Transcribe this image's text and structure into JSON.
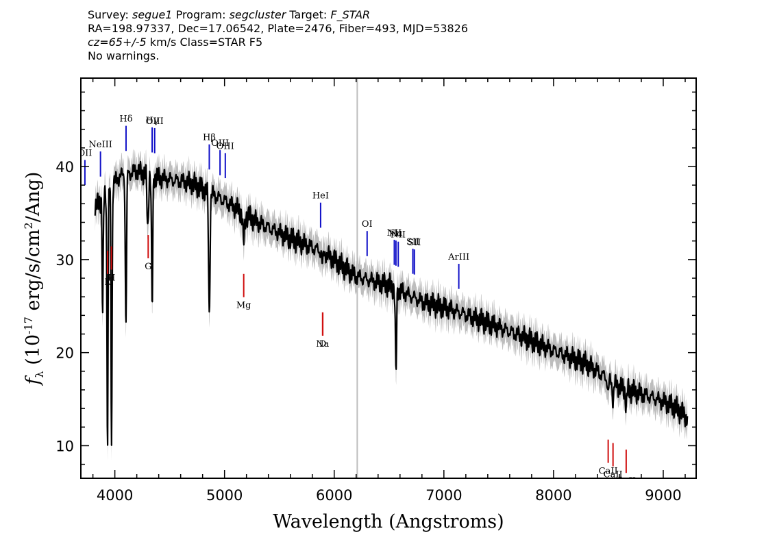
{
  "header": {
    "survey_key": "Survey:",
    "survey": "segue1",
    "program_key": "Program:",
    "program": "segcluster",
    "target_key": "Target:",
    "target": "F_STAR",
    "line2": "RA=198.97337, Dec=17.06542, Plate=2476, Fiber=493, MJD=53826",
    "cz_value": "cz=65+/-5",
    "cz_rest": " km/s Class=STAR F5",
    "line4": "No warnings."
  },
  "chart_data": {
    "type": "line",
    "xlabel": "Wavelength (Angstroms)",
    "ylabel": "f_λ (10^-17 erg/s/cm^2/Ang)",
    "xlim": [
      3690,
      9300
    ],
    "ylim": [
      6.5,
      49.5
    ],
    "x_ticks": [
      4000,
      5000,
      6000,
      7000,
      8000,
      9000
    ],
    "y_ticks": [
      10,
      20,
      30,
      40
    ],
    "vertical_marker_x": 6210,
    "colors": {
      "flux": "#000000",
      "error": "#bdbdbd",
      "emission": "#1010c8",
      "absorption": "#d01010",
      "marker": "#bdbdbd"
    },
    "continuum": [
      [
        3820,
        35.5
      ],
      [
        3900,
        37.0
      ],
      [
        4050,
        39.0
      ],
      [
        4200,
        39.5
      ],
      [
        4400,
        38.8
      ],
      [
        4700,
        38.2
      ],
      [
        5000,
        36.3
      ],
      [
        5300,
        34.0
      ],
      [
        5600,
        32.3
      ],
      [
        5900,
        30.8
      ],
      [
        6200,
        28.2
      ],
      [
        6500,
        27.2
      ],
      [
        6800,
        25.5
      ],
      [
        7100,
        24.5
      ],
      [
        7400,
        23.2
      ],
      [
        7700,
        21.8
      ],
      [
        8000,
        20.2
      ],
      [
        8300,
        18.8
      ],
      [
        8600,
        16.3
      ],
      [
        8900,
        15.2
      ],
      [
        9100,
        14.2
      ],
      [
        9220,
        13.0
      ]
    ],
    "absorption_features": [
      {
        "x": 3889,
        "depth": 13.0,
        "width": 7
      },
      {
        "x": 3933,
        "depth": 27.0,
        "width": 7
      },
      {
        "x": 3970,
        "depth": 27.0,
        "width": 7
      },
      {
        "x": 4101,
        "depth": 16.0,
        "width": 8
      },
      {
        "x": 4300,
        "depth": 6.0,
        "width": 9
      },
      {
        "x": 4340,
        "depth": 14.0,
        "width": 8
      },
      {
        "x": 4861,
        "depth": 13.0,
        "width": 9
      },
      {
        "x": 5175,
        "depth": 3.0,
        "width": 12
      },
      {
        "x": 5893,
        "depth": 1.5,
        "width": 8
      },
      {
        "x": 6563,
        "depth": 9.0,
        "width": 8
      },
      {
        "x": 8498,
        "depth": 1.5,
        "width": 8
      },
      {
        "x": 8542,
        "depth": 2.0,
        "width": 8
      },
      {
        "x": 8662,
        "depth": 2.0,
        "width": 8
      }
    ],
    "emission_lines": [
      {
        "label": "OII",
        "x": 3727
      },
      {
        "label": "NeIII",
        "x": 3869
      },
      {
        "label": "Hδ",
        "x": 4102
      },
      {
        "label": "Hγ",
        "x": 4340
      },
      {
        "label": "OIII",
        "x": 4363
      },
      {
        "label": "Hβ",
        "x": 4861
      },
      {
        "label": "OIII",
        "x": 4959
      },
      {
        "label": "OIII",
        "x": 5007
      },
      {
        "label": "HeI",
        "x": 5876
      },
      {
        "label": "OI",
        "x": 6300
      },
      {
        "label": "NII",
        "x": 6548
      },
      {
        "label": "Hα",
        "x": 6563
      },
      {
        "label": "NII",
        "x": 6584
      },
      {
        "label": "SII",
        "x": 6717
      },
      {
        "label": "SII",
        "x": 6731
      },
      {
        "label": "ArIII",
        "x": 7136
      }
    ],
    "absorption_lines": [
      {
        "label": "K",
        "x": 3934
      },
      {
        "label": "H",
        "x": 3969
      },
      {
        "label": "G",
        "x": 4304
      },
      {
        "label": "Mg",
        "x": 5175
      },
      {
        "label": "Na",
        "x": 5894
      },
      {
        "label": "D",
        "x": 5896
      },
      {
        "label": "CaII",
        "x": 8498
      },
      {
        "label": "CaII",
        "x": 8542
      },
      {
        "label": "CaII",
        "x": 8662
      }
    ]
  }
}
